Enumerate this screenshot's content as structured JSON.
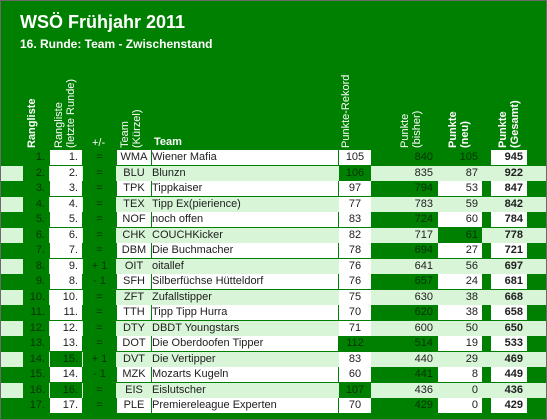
{
  "title": "WSÖ Frühjahr 2011",
  "subtitle": "16. Runde: Team - Zwischenstand",
  "headers": {
    "rangliste": "Rangliste",
    "rangliste_letzte_1": "Rangliste",
    "rangliste_letzte_2": "(letzte Runde)",
    "plusminus": "+/-",
    "team_kurzel_1": "Team",
    "team_kurzel_2": "(Kürzel)",
    "team": "Team",
    "punkte_rekord": "Punkte-Rekord",
    "punkte_bisher_1": "Punkte",
    "punkte_bisher_2": "(bisher)",
    "punkte_neu_1": "Punkte",
    "punkte_neu_2": "(neu)",
    "punkte_gesamt_1": "Punkte",
    "punkte_gesamt_2": "(Gesamt)"
  },
  "colors": {
    "green": "#008000",
    "light": "#d8f5d8",
    "white": "#ffffff"
  },
  "rows": [
    {
      "rank": "1.",
      "prev": "1.",
      "diff": "=",
      "code": "WMA",
      "name": "Wiener Mafia",
      "record": "105",
      "bisher": "840",
      "neu": "105",
      "gesamt": "945",
      "prevGreen": false,
      "recGreen": false,
      "neuGreen": true
    },
    {
      "rank": "2.",
      "prev": "2.",
      "diff": "=",
      "code": "BLU",
      "name": "Blunzn",
      "record": "106",
      "bisher": "835",
      "neu": "87",
      "gesamt": "922",
      "prevGreen": false,
      "recGreen": true,
      "neuGreen": false
    },
    {
      "rank": "3.",
      "prev": "3.",
      "diff": "=",
      "code": "TPK",
      "name": "Tippkaiser",
      "record": "97",
      "bisher": "794",
      "neu": "53",
      "gesamt": "847",
      "prevGreen": false,
      "recGreen": false,
      "neuGreen": false
    },
    {
      "rank": "4.",
      "prev": "4.",
      "diff": "=",
      "code": "TEX",
      "name": "Tipp Ex(pierience)",
      "record": "77",
      "bisher": "783",
      "neu": "59",
      "gesamt": "842",
      "prevGreen": false,
      "recGreen": false,
      "neuGreen": false
    },
    {
      "rank": "5.",
      "prev": "5.",
      "diff": "=",
      "code": "NOF",
      "name": "noch offen",
      "record": "83",
      "bisher": "724",
      "neu": "60",
      "gesamt": "784",
      "prevGreen": false,
      "recGreen": false,
      "neuGreen": false
    },
    {
      "rank": "6.",
      "prev": "6.",
      "diff": "=",
      "code": "CHK",
      "name": "COUCHKicker",
      "record": "82",
      "bisher": "717",
      "neu": "61",
      "gesamt": "778",
      "prevGreen": false,
      "recGreen": false,
      "neuGreen": true
    },
    {
      "rank": "7.",
      "prev": "7.",
      "diff": "=",
      "code": "DBM",
      "name": "Die Buchmacher",
      "record": "78",
      "bisher": "694",
      "neu": "27",
      "gesamt": "721",
      "prevGreen": false,
      "recGreen": false,
      "neuGreen": false
    },
    {
      "rank": "8.",
      "prev": "9.",
      "diff": "+ 1",
      "code": "OIT",
      "name": "oitallef",
      "record": "76",
      "bisher": "641",
      "neu": "56",
      "gesamt": "697",
      "prevGreen": false,
      "recGreen": false,
      "neuGreen": false
    },
    {
      "rank": "9.",
      "prev": "8.",
      "diff": "- 1",
      "code": "SFH",
      "name": "Silberfüchse Hütteldorf",
      "record": "76",
      "bisher": "657",
      "neu": "24",
      "gesamt": "681",
      "prevGreen": false,
      "recGreen": false,
      "neuGreen": false
    },
    {
      "rank": "10.",
      "prev": "10.",
      "diff": "=",
      "code": "ZFT",
      "name": "Zufallstipper",
      "record": "75",
      "bisher": "630",
      "neu": "38",
      "gesamt": "668",
      "prevGreen": false,
      "recGreen": false,
      "neuGreen": false
    },
    {
      "rank": "11.",
      "prev": "11.",
      "diff": "=",
      "code": "TTH",
      "name": "Tipp Tipp Hurra",
      "record": "70",
      "bisher": "620",
      "neu": "38",
      "gesamt": "658",
      "prevGreen": false,
      "recGreen": false,
      "neuGreen": false
    },
    {
      "rank": "12.",
      "prev": "12.",
      "diff": "=",
      "code": "DTY",
      "name": "DBDT Youngstars",
      "record": "71",
      "bisher": "600",
      "neu": "50",
      "gesamt": "650",
      "prevGreen": false,
      "recGreen": false,
      "neuGreen": false
    },
    {
      "rank": "13.",
      "prev": "13.",
      "diff": "=",
      "code": "DOT",
      "name": "Die Oberdoofen Tipper",
      "record": "112",
      "bisher": "514",
      "neu": "19",
      "gesamt": "533",
      "prevGreen": false,
      "recGreen": true,
      "neuGreen": false
    },
    {
      "rank": "14.",
      "prev": "15.",
      "diff": "+ 1",
      "code": "DVT",
      "name": "Die Vertipper",
      "record": "83",
      "bisher": "440",
      "neu": "29",
      "gesamt": "469",
      "prevGreen": true,
      "recGreen": false,
      "neuGreen": false
    },
    {
      "rank": "15.",
      "prev": "14.",
      "diff": "- 1",
      "code": "MZK",
      "name": "Mozarts Kugeln",
      "record": "60",
      "bisher": "441",
      "neu": "8",
      "gesamt": "449",
      "prevGreen": false,
      "recGreen": false,
      "neuGreen": false
    },
    {
      "rank": "16.",
      "prev": "16.",
      "diff": "=",
      "code": "EIS",
      "name": "Eislutscher",
      "record": "107",
      "bisher": "436",
      "neu": "0",
      "gesamt": "436",
      "prevGreen": true,
      "recGreen": true,
      "neuGreen": false
    },
    {
      "rank": "17.",
      "prev": "17.",
      "diff": "=",
      "code": "PLE",
      "name": "Premiereleague Experten",
      "record": "70",
      "bisher": "429",
      "neu": "0",
      "gesamt": "429",
      "prevGreen": false,
      "recGreen": false,
      "neuGreen": false
    }
  ]
}
